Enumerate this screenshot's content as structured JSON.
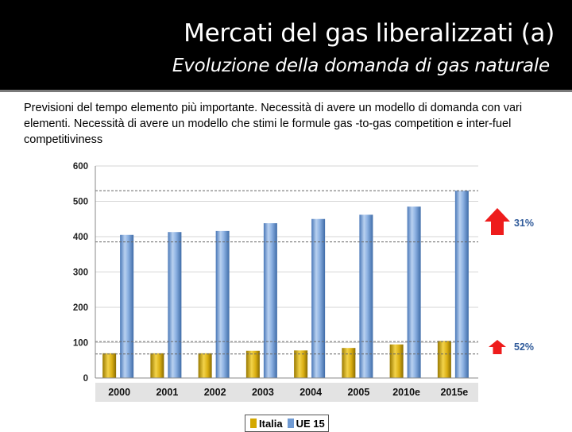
{
  "slide": {
    "title": "Mercati del gas liberalizzati (a)",
    "subtitle": "Evoluzione della domanda di gas naturale",
    "body": "Previsioni del tempo elemento più importante. Necessità di avere un modello di domanda con vari elementi. Necessità di avere un modello che stimi le formule gas -to-gas competition e inter-fuel competitiviness"
  },
  "colors": {
    "header": "#000000",
    "italia": "#d4a800",
    "ue15": "#6f9ad3",
    "arrow": "#ee1c1c",
    "annotation": "#2f5a9a"
  },
  "chart_data": {
    "type": "bar",
    "categories": [
      "2000",
      "2001",
      "2002",
      "2003",
      "2004",
      "2005",
      "2010e",
      "2015e"
    ],
    "series": [
      {
        "name": "Italia",
        "values": [
          70,
          70,
          70,
          77,
          78,
          85,
          95,
          105
        ]
      },
      {
        "name": "UE 15",
        "values": [
          405,
          413,
          416,
          438,
          450,
          462,
          485,
          530
        ]
      }
    ],
    "yticks": [
      0,
      100,
      200,
      300,
      400,
      500,
      600
    ],
    "ylim": [
      0,
      600
    ],
    "reference_lines": [
      385,
      530,
      68,
      103
    ],
    "annotations": [
      {
        "text": "31%",
        "near": "UE 15"
      },
      {
        "text": "52%",
        "near": "Italia"
      }
    ],
    "legend_position": "bottom",
    "grid": true
  }
}
